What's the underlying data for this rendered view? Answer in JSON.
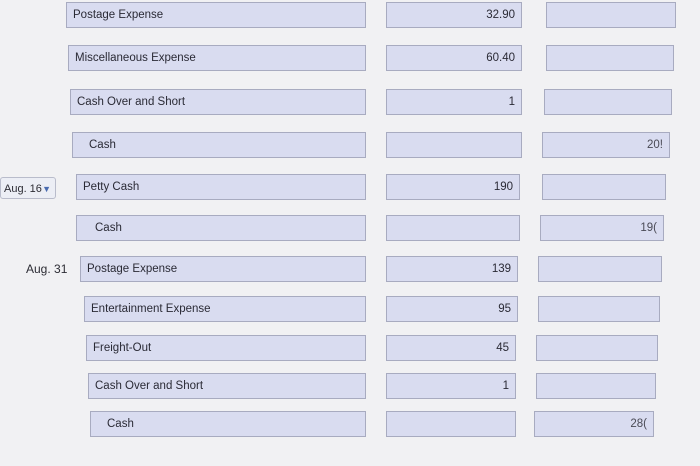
{
  "rows": [
    {
      "date": "",
      "account": "Postage Expense",
      "debit": "32.90",
      "credit": ""
    },
    {
      "date": "",
      "account": "Miscellaneous Expense",
      "debit": "60.40",
      "credit": ""
    },
    {
      "date": "",
      "account": "Cash Over and Short",
      "debit": "1",
      "credit": ""
    },
    {
      "date": "",
      "account": "Cash",
      "debit": "",
      "credit": "20!"
    },
    {
      "date": "Aug. 16",
      "account": "Petty Cash",
      "debit": "190",
      "credit": ""
    },
    {
      "date": "",
      "account": "Cash",
      "debit": "",
      "credit": "19("
    },
    {
      "date": "Aug. 31",
      "account": "Postage Expense",
      "debit": "139",
      "credit": ""
    },
    {
      "date": "",
      "account": "Entertainment Expense",
      "debit": "95",
      "credit": ""
    },
    {
      "date": "",
      "account": "Freight-Out",
      "debit": "45",
      "credit": ""
    },
    {
      "date": "",
      "account": "Cash Over and Short",
      "debit": "1",
      "credit": ""
    },
    {
      "date": "",
      "account": "Cash",
      "debit": "",
      "credit": "28("
    }
  ]
}
